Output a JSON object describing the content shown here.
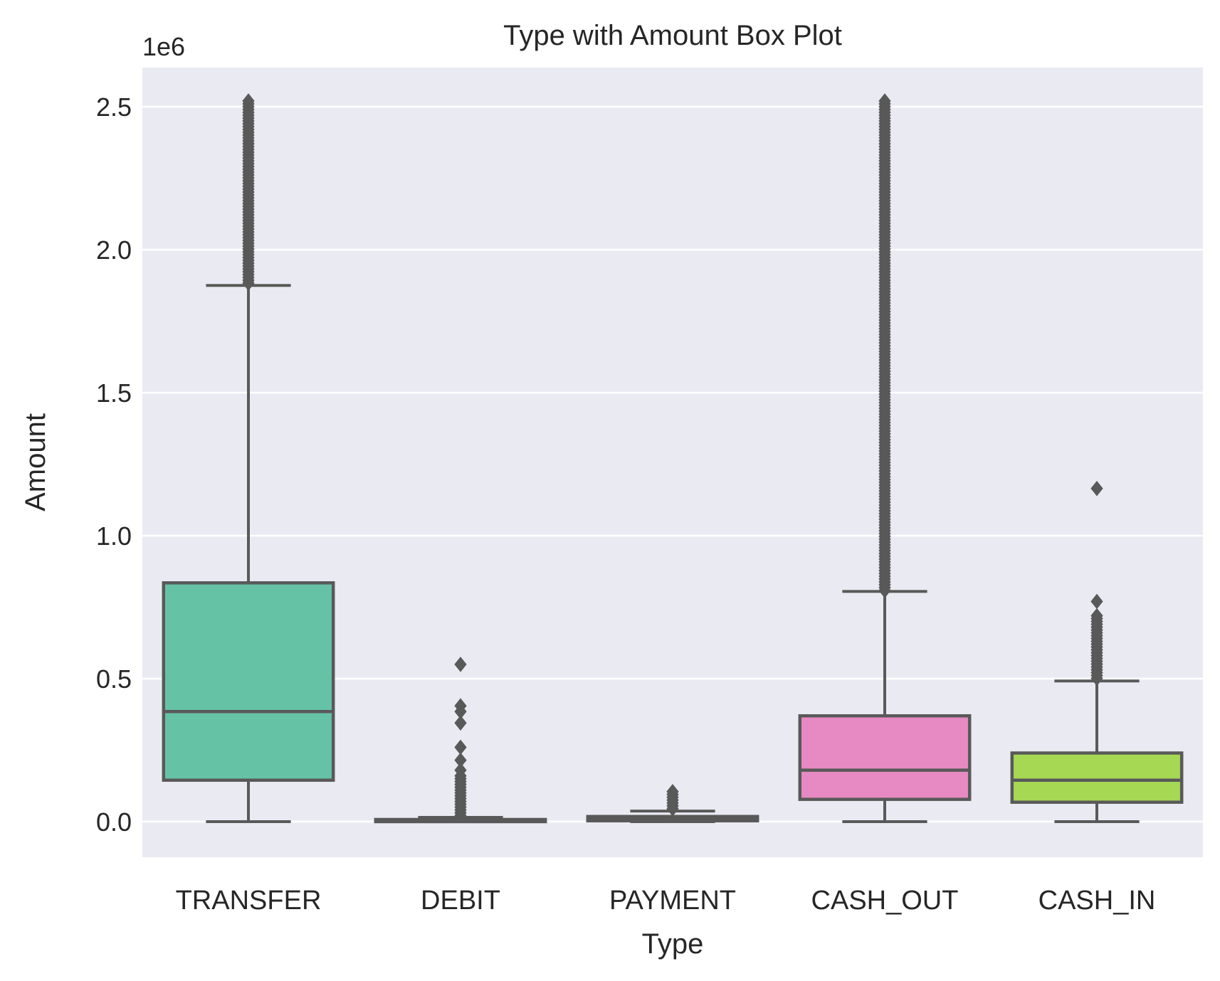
{
  "chart_data": {
    "type": "box",
    "title": "Type with Amount Box Plot",
    "xlabel": "Type",
    "ylabel": "Amount",
    "y_offset_label": "1e6",
    "y_scale": 1000000,
    "ylim": [
      -120000,
      2630000
    ],
    "yticks": [
      0,
      500000,
      1000000,
      1500000,
      2000000,
      2500000
    ],
    "ytick_labels": [
      "0.0",
      "0.5",
      "1.0",
      "1.5",
      "2.0",
      "2.5"
    ],
    "grid": true,
    "legend": "none",
    "background": "#eaeaf2",
    "categories": [
      "TRANSFER",
      "DEBIT",
      "PAYMENT",
      "CASH_OUT",
      "CASH_IN"
    ],
    "boxes": [
      {
        "category": "TRANSFER",
        "color": "#66c2a5",
        "whisker_low": 0,
        "q1": 145000,
        "median": 385000,
        "q3": 835000,
        "whisker_high": 1875000,
        "outliers_range": [
          1875000,
          2520000
        ],
        "outliers": []
      },
      {
        "category": "DEBIT",
        "color": "#fc8d62",
        "whisker_low": 0,
        "q1": 1500,
        "median": 3500,
        "q3": 7500,
        "whisker_high": 15000,
        "outliers_range": [
          15000,
          160000
        ],
        "outliers": [
          180000,
          215000,
          260000,
          345000,
          385000,
          405000,
          550000
        ]
      },
      {
        "category": "PAYMENT",
        "color": "#8da0cb",
        "whisker_low": 0,
        "q1": 3000,
        "median": 9000,
        "q3": 18000,
        "whisker_high": 37000,
        "outliers_range": [
          37000,
          105000
        ],
        "outliers": []
      },
      {
        "category": "CASH_OUT",
        "color": "#e78ac3",
        "whisker_low": 0,
        "q1": 78000,
        "median": 180000,
        "q3": 370000,
        "whisker_high": 805000,
        "outliers_range": [
          805000,
          2520000
        ],
        "outliers": []
      },
      {
        "category": "CASH_IN",
        "color": "#a6d854",
        "whisker_low": 0,
        "q1": 68000,
        "median": 145000,
        "q3": 240000,
        "whisker_high": 492000,
        "outliers_range": [
          492000,
          720000
        ],
        "outliers": [
          770000,
          1165000
        ]
      }
    ],
    "line_color": "#595959"
  }
}
